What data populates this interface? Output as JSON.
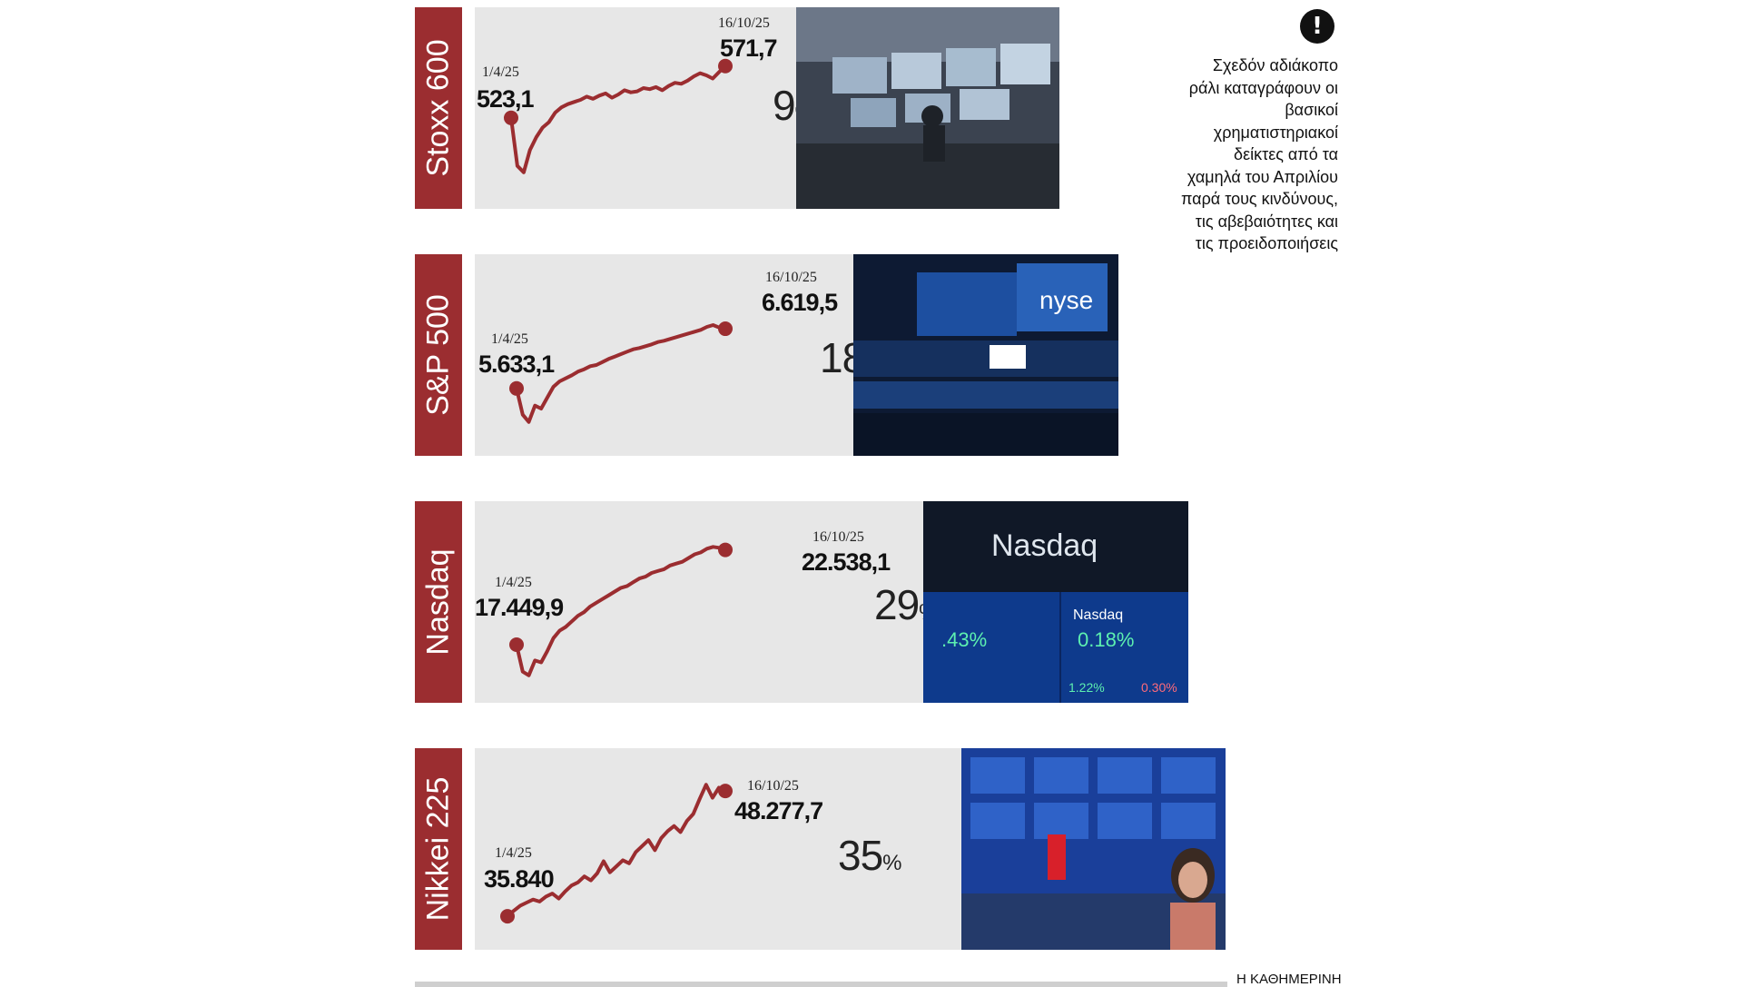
{
  "note": {
    "icon": "exclamation-icon",
    "text": "Σχεδόν αδιάκοπο ράλι καταγράφουν οι βασικοί χρηματιστηριακοί δείκτες από τα χαμηλά του Απριλίου παρά τους κινδύνους, τις αβεβαιότητες και τις προειδοποιήσεις"
  },
  "source": "Η ΚΑΘΗΜΕΡΙΝΗ",
  "colors": {
    "accent": "#9b2d30",
    "line": "#9b2d30",
    "panel": "#e7e7e7"
  },
  "chart_data": [
    {
      "type": "line",
      "title": "Stoxx 600",
      "flag": "eu-flag",
      "start": {
        "date": "1/4/25",
        "value": "523,1"
      },
      "end": {
        "date": "16/10/25",
        "value": "571,7"
      },
      "change": "9",
      "change_unit": "%",
      "series": [
        {
          "values": [
            523.1,
            478,
            472,
            493,
            505,
            514,
            519,
            528,
            533,
            536,
            538,
            540,
            543,
            541,
            544,
            546,
            542,
            545,
            549,
            547,
            548,
            551,
            550,
            552,
            549,
            553,
            556,
            555,
            558,
            562,
            565,
            563,
            560,
            566,
            571.7
          ]
        }
      ],
      "ylim": [
        465,
        580
      ]
    },
    {
      "type": "line",
      "title": "S&P 500",
      "flag": "us-flag",
      "start": {
        "date": "1/4/25",
        "value": "5.633,1"
      },
      "end": {
        "date": "16/10/25",
        "value": "6.619,5"
      },
      "change": "18",
      "change_unit": "%",
      "series": [
        {
          "values": [
            5633.1,
            5200,
            5080,
            5350,
            5300,
            5480,
            5660,
            5750,
            5800,
            5850,
            5910,
            5950,
            6000,
            6020,
            6070,
            6120,
            6160,
            6200,
            6240,
            6280,
            6300,
            6330,
            6360,
            6400,
            6420,
            6450,
            6480,
            6510,
            6540,
            6570,
            6600,
            6650,
            6680,
            6640,
            6619.5
          ]
        }
      ],
      "ylim": [
        5000,
        6800
      ]
    },
    {
      "type": "line",
      "title": "Nasdaq",
      "flag": "us-flag",
      "start": {
        "date": "1/4/25",
        "value": "17.449,9"
      },
      "end": {
        "date": "16/10/25",
        "value": "22.538,1"
      },
      "change": "29",
      "change_unit": "%",
      "series": [
        {
          "values": [
            17449.9,
            16000,
            15800,
            16600,
            16500,
            17100,
            17800,
            18200,
            18400,
            18700,
            19000,
            19200,
            19500,
            19700,
            19900,
            20100,
            20300,
            20500,
            20600,
            20800,
            21000,
            21100,
            21300,
            21400,
            21500,
            21700,
            21800,
            21900,
            22100,
            22300,
            22400,
            22600,
            22700,
            22650,
            22538.1
          ]
        }
      ],
      "ylim": [
        15500,
        23200
      ]
    },
    {
      "type": "line",
      "title": "Nikkei 225",
      "flag": "japan-flag",
      "start": {
        "date": "1/4/25",
        "value": "35.840"
      },
      "end": {
        "date": "16/10/25",
        "value": "48.277,7"
      },
      "change": "35",
      "change_unit": "%",
      "series": [
        {
          "values": [
            35840,
            36400,
            36900,
            37200,
            37500,
            37300,
            37800,
            38100,
            37600,
            38300,
            38900,
            39200,
            39800,
            39400,
            40100,
            41300,
            40200,
            40800,
            41400,
            41100,
            42200,
            42800,
            43400,
            42400,
            43600,
            44300,
            44800,
            44200,
            45300,
            46000,
            47500,
            48900,
            47600,
            48600,
            48277.7
          ]
        }
      ],
      "ylim": [
        34500,
        50000
      ]
    }
  ]
}
